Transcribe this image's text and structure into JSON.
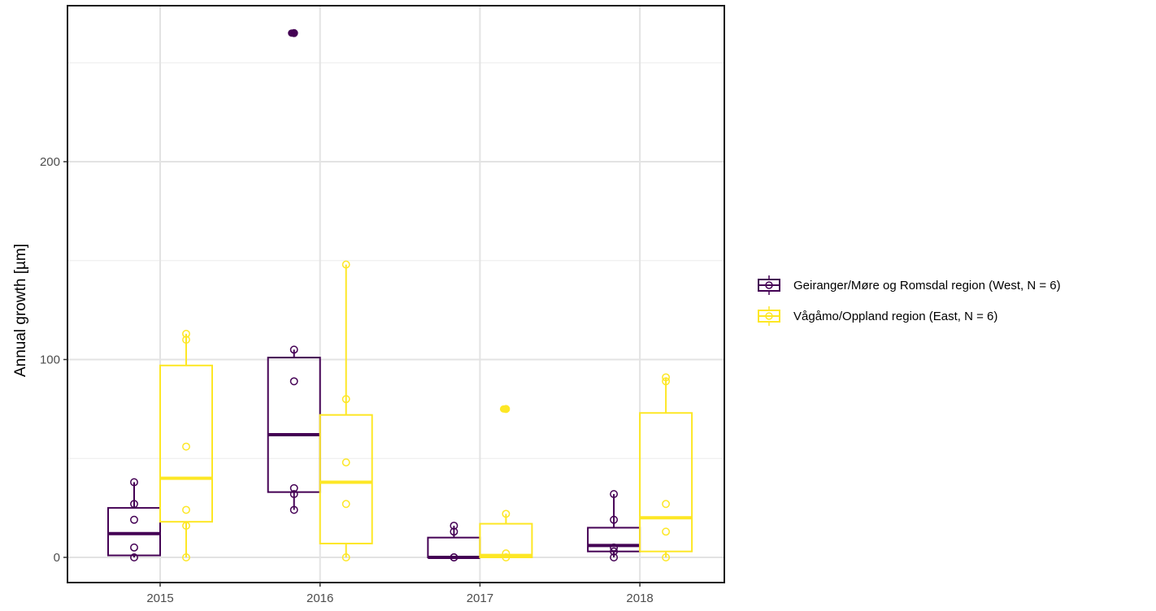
{
  "chart_data": {
    "type": "boxplot",
    "title": "",
    "xlabel": "",
    "ylabel": "Annual growth [µm]",
    "ylim": [
      -12,
      278
    ],
    "y_ticks": [
      0,
      100,
      200
    ],
    "categories": [
      "2015",
      "2016",
      "2017",
      "2018"
    ],
    "grid": true,
    "legend_position": "right",
    "series": [
      {
        "name": "Geiranger/Møre og Romsdal region (West, N = 6)",
        "color": "#440154",
        "boxes": [
          {
            "category": "2015",
            "q1": 1,
            "median": 12,
            "q3": 25,
            "whisker_low": 0,
            "whisker_high": 38,
            "outliers": [],
            "points": [
              0,
              5,
              19,
              27,
              38
            ]
          },
          {
            "category": "2016",
            "q1": 33,
            "median": 62,
            "q3": 101,
            "whisker_low": 24,
            "whisker_high": 105,
            "outliers": [
              265
            ],
            "points": [
              24,
              32,
              35,
              89,
              105,
              265
            ]
          },
          {
            "category": "2017",
            "q1": 0,
            "median": 0,
            "q3": 10,
            "whisker_low": 0,
            "whisker_high": 16,
            "outliers": [],
            "points": [
              0,
              0,
              13,
              16
            ]
          },
          {
            "category": "2018",
            "q1": 3,
            "median": 6,
            "q3": 15,
            "whisker_low": 0,
            "whisker_high": 32,
            "outliers": [],
            "points": [
              0,
              3,
              5,
              19,
              32
            ]
          }
        ]
      },
      {
        "name": "Vågåmo/Oppland region (East, N = 6)",
        "color": "#fde725",
        "boxes": [
          {
            "category": "2015",
            "q1": 18,
            "median": 40,
            "q3": 97,
            "whisker_low": 0,
            "whisker_high": 113,
            "outliers": [],
            "points": [
              0,
              16,
              24,
              56,
              110,
              113
            ]
          },
          {
            "category": "2016",
            "q1": 7,
            "median": 38,
            "q3": 72,
            "whisker_low": 0,
            "whisker_high": 148,
            "outliers": [],
            "points": [
              0,
              27,
              48,
              80,
              148
            ]
          },
          {
            "category": "2017",
            "q1": 0,
            "median": 1,
            "q3": 17,
            "whisker_low": 0,
            "whisker_high": 22,
            "outliers": [
              75
            ],
            "points": [
              0,
              2,
              22,
              75
            ]
          },
          {
            "category": "2018",
            "q1": 3,
            "median": 20,
            "q3": 73,
            "whisker_low": 0,
            "whisker_high": 91,
            "outliers": [],
            "points": [
              0,
              13,
              27,
              89,
              91
            ]
          }
        ]
      }
    ]
  }
}
